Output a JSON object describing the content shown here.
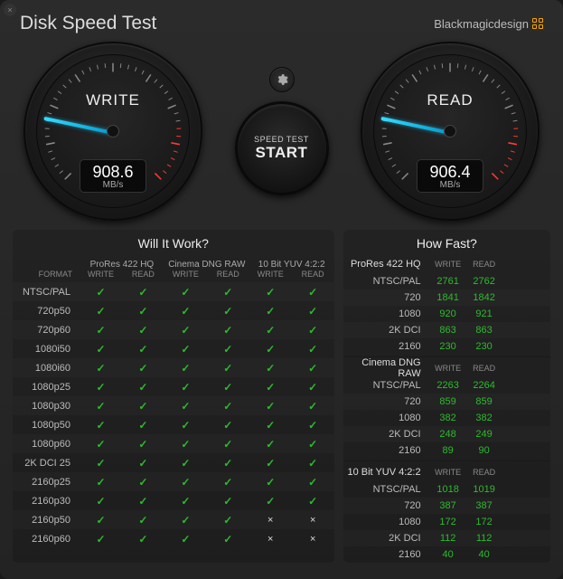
{
  "app": {
    "title": "Disk Speed Test",
    "brand": "Blackmagicdesign"
  },
  "colors": {
    "accent_green": "#2dbb2d",
    "needle": "#33ddff",
    "redzone": "#ff3b30"
  },
  "start_button": {
    "line1": "SPEED TEST",
    "line2": "START"
  },
  "gauges": {
    "write": {
      "label": "WRITE",
      "value": "908.6",
      "unit": "MB/s",
      "needle_angle": 192
    },
    "read": {
      "label": "READ",
      "value": "906.4",
      "unit": "MB/s",
      "needle_angle": 192
    }
  },
  "will_it_work": {
    "title": "Will It Work?",
    "format_header": "FORMAT",
    "codec_groups": [
      "ProRes 422 HQ",
      "Cinema DNG RAW",
      "10 Bit YUV 4:2:2"
    ],
    "sub_headers": [
      "WRITE",
      "READ"
    ],
    "rows": [
      {
        "label": "NTSC/PAL",
        "cells": [
          true,
          true,
          true,
          true,
          true,
          true
        ]
      },
      {
        "label": "720p50",
        "cells": [
          true,
          true,
          true,
          true,
          true,
          true
        ]
      },
      {
        "label": "720p60",
        "cells": [
          true,
          true,
          true,
          true,
          true,
          true
        ]
      },
      {
        "label": "1080i50",
        "cells": [
          true,
          true,
          true,
          true,
          true,
          true
        ]
      },
      {
        "label": "1080i60",
        "cells": [
          true,
          true,
          true,
          true,
          true,
          true
        ]
      },
      {
        "label": "1080p25",
        "cells": [
          true,
          true,
          true,
          true,
          true,
          true
        ]
      },
      {
        "label": "1080p30",
        "cells": [
          true,
          true,
          true,
          true,
          true,
          true
        ]
      },
      {
        "label": "1080p50",
        "cells": [
          true,
          true,
          true,
          true,
          true,
          true
        ]
      },
      {
        "label": "1080p60",
        "cells": [
          true,
          true,
          true,
          true,
          true,
          true
        ]
      },
      {
        "label": "2K DCI 25",
        "cells": [
          true,
          true,
          true,
          true,
          true,
          true
        ]
      },
      {
        "label": "2160p25",
        "cells": [
          true,
          true,
          true,
          true,
          true,
          true
        ]
      },
      {
        "label": "2160p30",
        "cells": [
          true,
          true,
          true,
          true,
          true,
          true
        ]
      },
      {
        "label": "2160p50",
        "cells": [
          true,
          true,
          true,
          true,
          false,
          false
        ]
      },
      {
        "label": "2160p60",
        "cells": [
          true,
          true,
          true,
          true,
          false,
          false
        ]
      }
    ]
  },
  "how_fast": {
    "title": "How Fast?",
    "col_headers": [
      "WRITE",
      "READ"
    ],
    "sections": [
      {
        "name": "ProRes 422 HQ",
        "rows": [
          {
            "label": "NTSC/PAL",
            "write": "2761",
            "read": "2762"
          },
          {
            "label": "720",
            "write": "1841",
            "read": "1842"
          },
          {
            "label": "1080",
            "write": "920",
            "read": "921"
          },
          {
            "label": "2K DCI",
            "write": "863",
            "read": "863"
          },
          {
            "label": "2160",
            "write": "230",
            "read": "230"
          }
        ]
      },
      {
        "name": "Cinema DNG RAW",
        "rows": [
          {
            "label": "NTSC/PAL",
            "write": "2263",
            "read": "2264"
          },
          {
            "label": "720",
            "write": "859",
            "read": "859"
          },
          {
            "label": "1080",
            "write": "382",
            "read": "382"
          },
          {
            "label": "2K DCI",
            "write": "248",
            "read": "249"
          },
          {
            "label": "2160",
            "write": "89",
            "read": "90"
          }
        ]
      },
      {
        "name": "10 Bit YUV 4:2:2",
        "rows": [
          {
            "label": "NTSC/PAL",
            "write": "1018",
            "read": "1019"
          },
          {
            "label": "720",
            "write": "387",
            "read": "387"
          },
          {
            "label": "1080",
            "write": "172",
            "read": "172"
          },
          {
            "label": "2K DCI",
            "write": "112",
            "read": "112"
          },
          {
            "label": "2160",
            "write": "40",
            "read": "40"
          }
        ]
      }
    ]
  }
}
